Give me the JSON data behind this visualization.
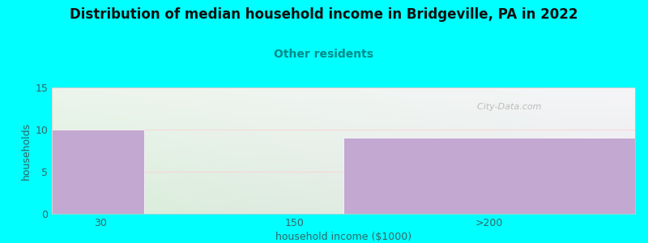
{
  "title": "Distribution of median household income in Bridgeville, PA in 2022",
  "subtitle": "Other residents",
  "xlabel": "household income ($1000)",
  "ylabel": "households",
  "background_color": "#00FFFF",
  "plot_bg_color_topleft": "#f0f7f0",
  "plot_bg_color_topright": "#f5f5f8",
  "plot_bg_color_bottomleft": "#deeede",
  "plot_bg_color_bottomright": "#eeeeee",
  "bar_color": "#c3a8d1",
  "bar_edge_color": "#ffffff",
  "title_fontsize": 12,
  "subtitle_fontsize": 10,
  "subtitle_color": "#008B8B",
  "title_color": "#111111",
  "axis_label_fontsize": 9,
  "tick_color": "#336666",
  "tick_fontsize": 9,
  "ylim": [
    0,
    15
  ],
  "yticks": [
    0,
    5,
    10,
    15
  ],
  "xlim": [
    0,
    6.0
  ],
  "xtick_labels": [
    "30",
    "150",
    ">200"
  ],
  "xtick_positions": [
    0.5,
    2.5,
    4.5
  ],
  "bars": [
    {
      "x_left": 0.0,
      "x_right": 0.95,
      "height": 10
    },
    {
      "x_left": 3.0,
      "x_right": 6.0,
      "height": 9
    }
  ],
  "watermark": "  City-Data.com",
  "watermark_color": "#aaaaaa",
  "grid_color": "#ffcccc",
  "grid_linewidth": 0.5
}
